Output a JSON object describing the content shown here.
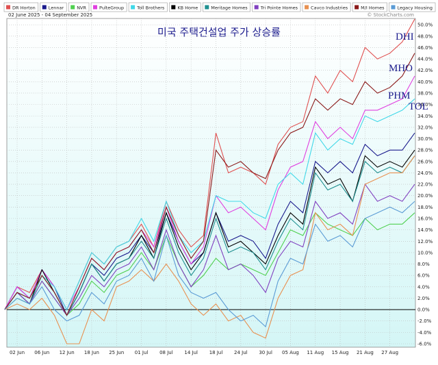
{
  "chart_data": {
    "type": "line",
    "title": "미국 주택건설업 주가 상승률",
    "subtitle": "02 June 2025 - 04 September 2025",
    "source": "© StockCharts.com",
    "annotations": [
      "DHI",
      "MHO",
      "PHM",
      "TOL"
    ],
    "categories": [
      null,
      "02 Jun",
      null,
      "06 Jun",
      null,
      "12 Jun",
      null,
      "18 Jun",
      null,
      "25 Jun",
      null,
      "01 Jul",
      null,
      "08 Jul",
      null,
      "14 Jul",
      null,
      "18 Jul",
      null,
      "24 Jul",
      null,
      "30 Jul",
      null,
      "05 Aug",
      null,
      "11 Aug",
      null,
      "15 Aug",
      null,
      "21 Aug",
      null,
      "27 Aug",
      null,
      null
    ],
    "ylim": [
      -6.6,
      51.1
    ],
    "yticks": [
      {
        "value": -6,
        "label": "-6.0%"
      },
      {
        "value": -4,
        "label": "-4.0%"
      },
      {
        "value": -2,
        "label": "-2.0%"
      },
      {
        "value": 0,
        "label": "0.0%"
      },
      {
        "value": 2,
        "label": "2.0%"
      },
      {
        "value": 4,
        "label": "4.0%"
      },
      {
        "value": 6,
        "label": "6.0%"
      },
      {
        "value": 8,
        "label": "8.0%"
      },
      {
        "value": 10,
        "label": "10.0%"
      },
      {
        "value": 12,
        "label": "12.0%"
      },
      {
        "value": 14,
        "label": "14.0%"
      },
      {
        "value": 16,
        "label": "16.0%"
      },
      {
        "value": 18,
        "label": "18.0%"
      },
      {
        "value": 20,
        "label": "20.0%"
      },
      {
        "value": 22,
        "label": "22.0%"
      },
      {
        "value": 24,
        "label": "24.0%"
      },
      {
        "value": 26,
        "label": "26.0%"
      },
      {
        "value": 28,
        "label": "28.0%"
      },
      {
        "value": 30,
        "label": "30.0%"
      },
      {
        "value": 32,
        "label": "32.0%"
      },
      {
        "value": 34,
        "label": "34.0%"
      },
      {
        "value": 36,
        "label": "36.0%"
      },
      {
        "value": 38,
        "label": "38.0%"
      },
      {
        "value": 40,
        "label": "40.0%"
      },
      {
        "value": 42,
        "label": "42.0%"
      },
      {
        "value": 44,
        "label": "44.0%"
      },
      {
        "value": 46,
        "label": "46.0%"
      },
      {
        "value": 48,
        "label": "48.0%"
      },
      {
        "value": 50,
        "label": "50.0%"
      }
    ],
    "grid": true,
    "series": [
      {
        "name": "DR Horton",
        "color": "#e05050",
        "values": [
          0,
          4,
          3,
          7,
          4,
          0,
          5,
          10,
          8,
          11,
          12,
          15,
          11,
          19,
          14,
          11,
          13,
          31,
          24,
          25,
          24,
          22,
          29,
          32,
          33,
          41,
          38,
          42,
          40,
          46,
          44,
          45,
          47,
          51
        ]
      },
      {
        "name": "Lennar",
        "color": "#1a1a8c",
        "values": [
          0,
          4,
          2,
          7,
          4,
          -1,
          3,
          8,
          6,
          9,
          10,
          13,
          10,
          17,
          12,
          8,
          10,
          17,
          12,
          13,
          12,
          9,
          15,
          19,
          17,
          26,
          24,
          26,
          24,
          29,
          27,
          28,
          28,
          31
        ]
      },
      {
        "name": "NVR",
        "color": "#50d050",
        "values": [
          0,
          2,
          1,
          5,
          2,
          -1,
          1,
          5,
          3,
          6,
          7,
          10,
          7,
          13,
          8,
          4,
          6,
          9,
          7,
          8,
          7,
          6,
          10,
          14,
          13,
          17,
          15,
          14,
          13,
          16,
          14,
          15,
          15,
          17
        ]
      },
      {
        "name": "PulteGroup",
        "color": "#e040e0",
        "values": [
          0,
          4,
          2,
          7,
          4,
          0,
          4,
          9,
          7,
          10,
          11,
          14,
          11,
          18,
          12,
          8,
          11,
          20,
          17,
          18,
          16,
          14,
          21,
          25,
          26,
          33,
          30,
          32,
          30,
          35,
          35,
          36,
          37,
          41
        ]
      },
      {
        "name": "Toll Brothers",
        "color": "#40d8e8",
        "values": [
          0,
          3,
          2,
          6,
          4,
          0,
          5,
          10,
          8,
          11,
          12,
          16,
          12,
          19,
          13,
          10,
          12,
          20,
          19,
          19,
          17,
          16,
          22,
          24,
          22,
          31,
          28,
          30,
          29,
          34,
          33,
          34,
          35,
          37
        ]
      },
      {
        "name": "KB Home",
        "color": "#000000",
        "values": [
          0,
          3,
          1,
          7,
          3,
          -1,
          3,
          8,
          5,
          8,
          9,
          13,
          9,
          17,
          11,
          7,
          10,
          17,
          11,
          12,
          10,
          8,
          13,
          17,
          15,
          25,
          22,
          23,
          19,
          27,
          25,
          26,
          25,
          28
        ]
      },
      {
        "name": "Meritage Homes",
        "color": "#209090",
        "values": [
          0,
          3,
          1,
          6,
          3,
          -1,
          3,
          8,
          5,
          8,
          9,
          12,
          9,
          16,
          10,
          6,
          9,
          16,
          10,
          11,
          10,
          7,
          12,
          16,
          14,
          24,
          21,
          22,
          19,
          26,
          24,
          25,
          24,
          27
        ]
      },
      {
        "name": "Tri Pointe Homes",
        "color": "#8040c0",
        "values": [
          0,
          3,
          1,
          5,
          2,
          -1,
          2,
          6,
          4,
          7,
          8,
          11,
          7,
          14,
          8,
          4,
          7,
          13,
          7,
          8,
          6,
          3,
          9,
          12,
          11,
          19,
          16,
          17,
          15,
          22,
          19,
          20,
          19,
          22
        ]
      },
      {
        "name": "Cavco Industries",
        "color": "#e89050",
        "values": [
          0,
          1,
          0,
          2,
          -1,
          -6,
          -6,
          0,
          -2,
          4,
          5,
          7,
          5,
          8,
          5,
          1,
          -1,
          1,
          -2,
          -1,
          -4,
          -5,
          2,
          6,
          7,
          17,
          14,
          15,
          13,
          22,
          23,
          24,
          24,
          27
        ]
      },
      {
        "name": "M/I Homes",
        "color": "#8b1a1a",
        "values": [
          0,
          3,
          2,
          6,
          3,
          -1,
          4,
          9,
          7,
          10,
          11,
          14,
          10,
          18,
          13,
          9,
          12,
          28,
          25,
          26,
          24,
          23,
          28,
          31,
          32,
          37,
          35,
          37,
          36,
          40,
          38,
          39,
          41,
          45
        ]
      },
      {
        "name": "Legacy Housing",
        "color": "#5a9bd5",
        "values": [
          0,
          2,
          1,
          4,
          0,
          -2,
          -1,
          3,
          1,
          5,
          6,
          9,
          5,
          13,
          6,
          3,
          2,
          3,
          0,
          -2,
          -1,
          -3,
          5,
          9,
          8,
          15,
          12,
          13,
          11,
          16,
          17,
          18,
          17,
          19
        ]
      }
    ]
  }
}
